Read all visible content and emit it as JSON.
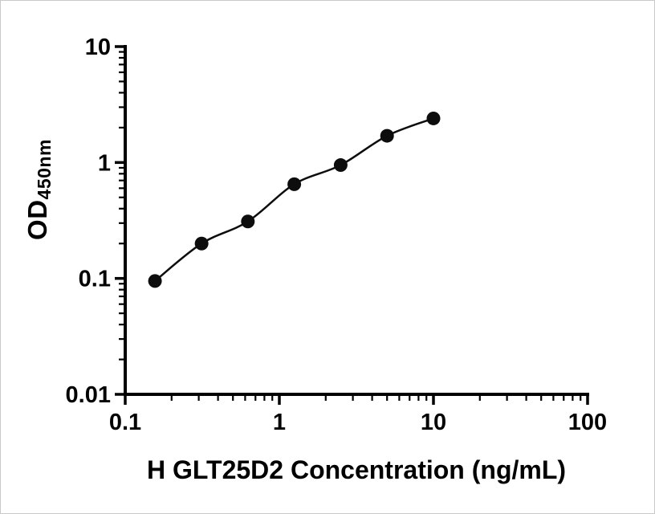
{
  "chart_data": {
    "type": "scatter",
    "title": "",
    "xlabel": "H GLT25D2 Concentration (ng/mL)",
    "ylabel": "OD",
    "ylabel_sub": "450nm",
    "x": [
      0.156,
      0.313,
      0.625,
      1.25,
      2.5,
      5,
      10
    ],
    "y": [
      0.095,
      0.2,
      0.31,
      0.65,
      0.95,
      1.7,
      2.4
    ],
    "xscale": "log",
    "yscale": "log",
    "xlim": [
      0.1,
      100
    ],
    "ylim": [
      0.01,
      10
    ],
    "x_ticks": [
      0.1,
      1,
      10,
      100
    ],
    "x_tick_labels": [
      "0.1",
      "1",
      "10",
      "100"
    ],
    "y_ticks": [
      0.01,
      0.1,
      1,
      10
    ],
    "y_tick_labels": [
      "0.01",
      "0.1",
      "1",
      "10"
    ],
    "grid": false,
    "legend": null,
    "curve": "smooth",
    "marker_color": "#0d0d0d",
    "line_color": "#0d0d0d",
    "axis_color": "#000000",
    "text_color": "#000000",
    "background": "#ffffff"
  }
}
